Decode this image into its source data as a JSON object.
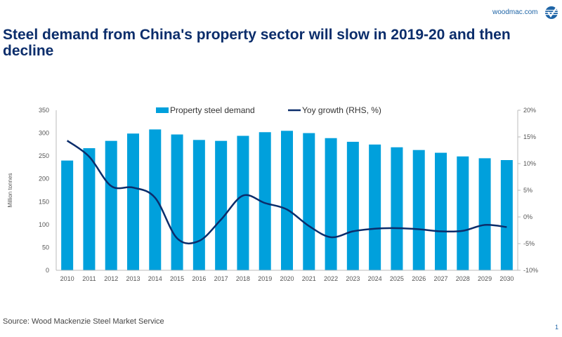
{
  "header": {
    "site": "woodmac.com",
    "logo": "woodmac-logo",
    "title": "Steel demand from China's property sector will slow in 2019-20 and then decline"
  },
  "footer": {
    "source": "Source: Wood Mackenzie Steel Market Service",
    "page": "1"
  },
  "colors": {
    "bar": "#00a0dc",
    "line": "#0b2d6b",
    "title": "#0b2d6b"
  },
  "chart_data": {
    "type": "bar+line",
    "categories": [
      "2010",
      "2011",
      "2012",
      "2013",
      "2014",
      "2015",
      "2016",
      "2017",
      "2018",
      "2019",
      "2020",
      "2021",
      "2022",
      "2023",
      "2024",
      "2025",
      "2026",
      "2027",
      "2028",
      "2029",
      "2030"
    ],
    "series": [
      {
        "name": "Property steel demand",
        "type": "bar",
        "axis": "left",
        "values": [
          240,
          267,
          283,
          299,
          308,
          297,
          285,
          283,
          294,
          302,
          305,
          300,
          289,
          281,
          275,
          269,
          263,
          257,
          249,
          245,
          241
        ]
      },
      {
        "name": "Yoy growth (RHS, %)",
        "type": "line",
        "axis": "right",
        "smooth": true,
        "values": [
          14.3,
          11.3,
          5.8,
          5.5,
          3.6,
          -4.0,
          -4.5,
          -0.5,
          4.0,
          2.6,
          1.4,
          -1.7,
          -3.8,
          -2.7,
          -2.2,
          -2.1,
          -2.3,
          -2.7,
          -2.6,
          -1.5,
          -1.9
        ]
      }
    ],
    "ylabel": "Million tonnes",
    "ylim": [
      0,
      350
    ],
    "yticks": [
      "0",
      "50",
      "100",
      "150",
      "200",
      "250",
      "300",
      "350"
    ],
    "y2lim": [
      -10,
      20
    ],
    "y2ticks": [
      "-10%",
      "-5%",
      "0%",
      "5%",
      "10%",
      "15%",
      "20%"
    ],
    "legend": "top-center",
    "grid": false
  }
}
